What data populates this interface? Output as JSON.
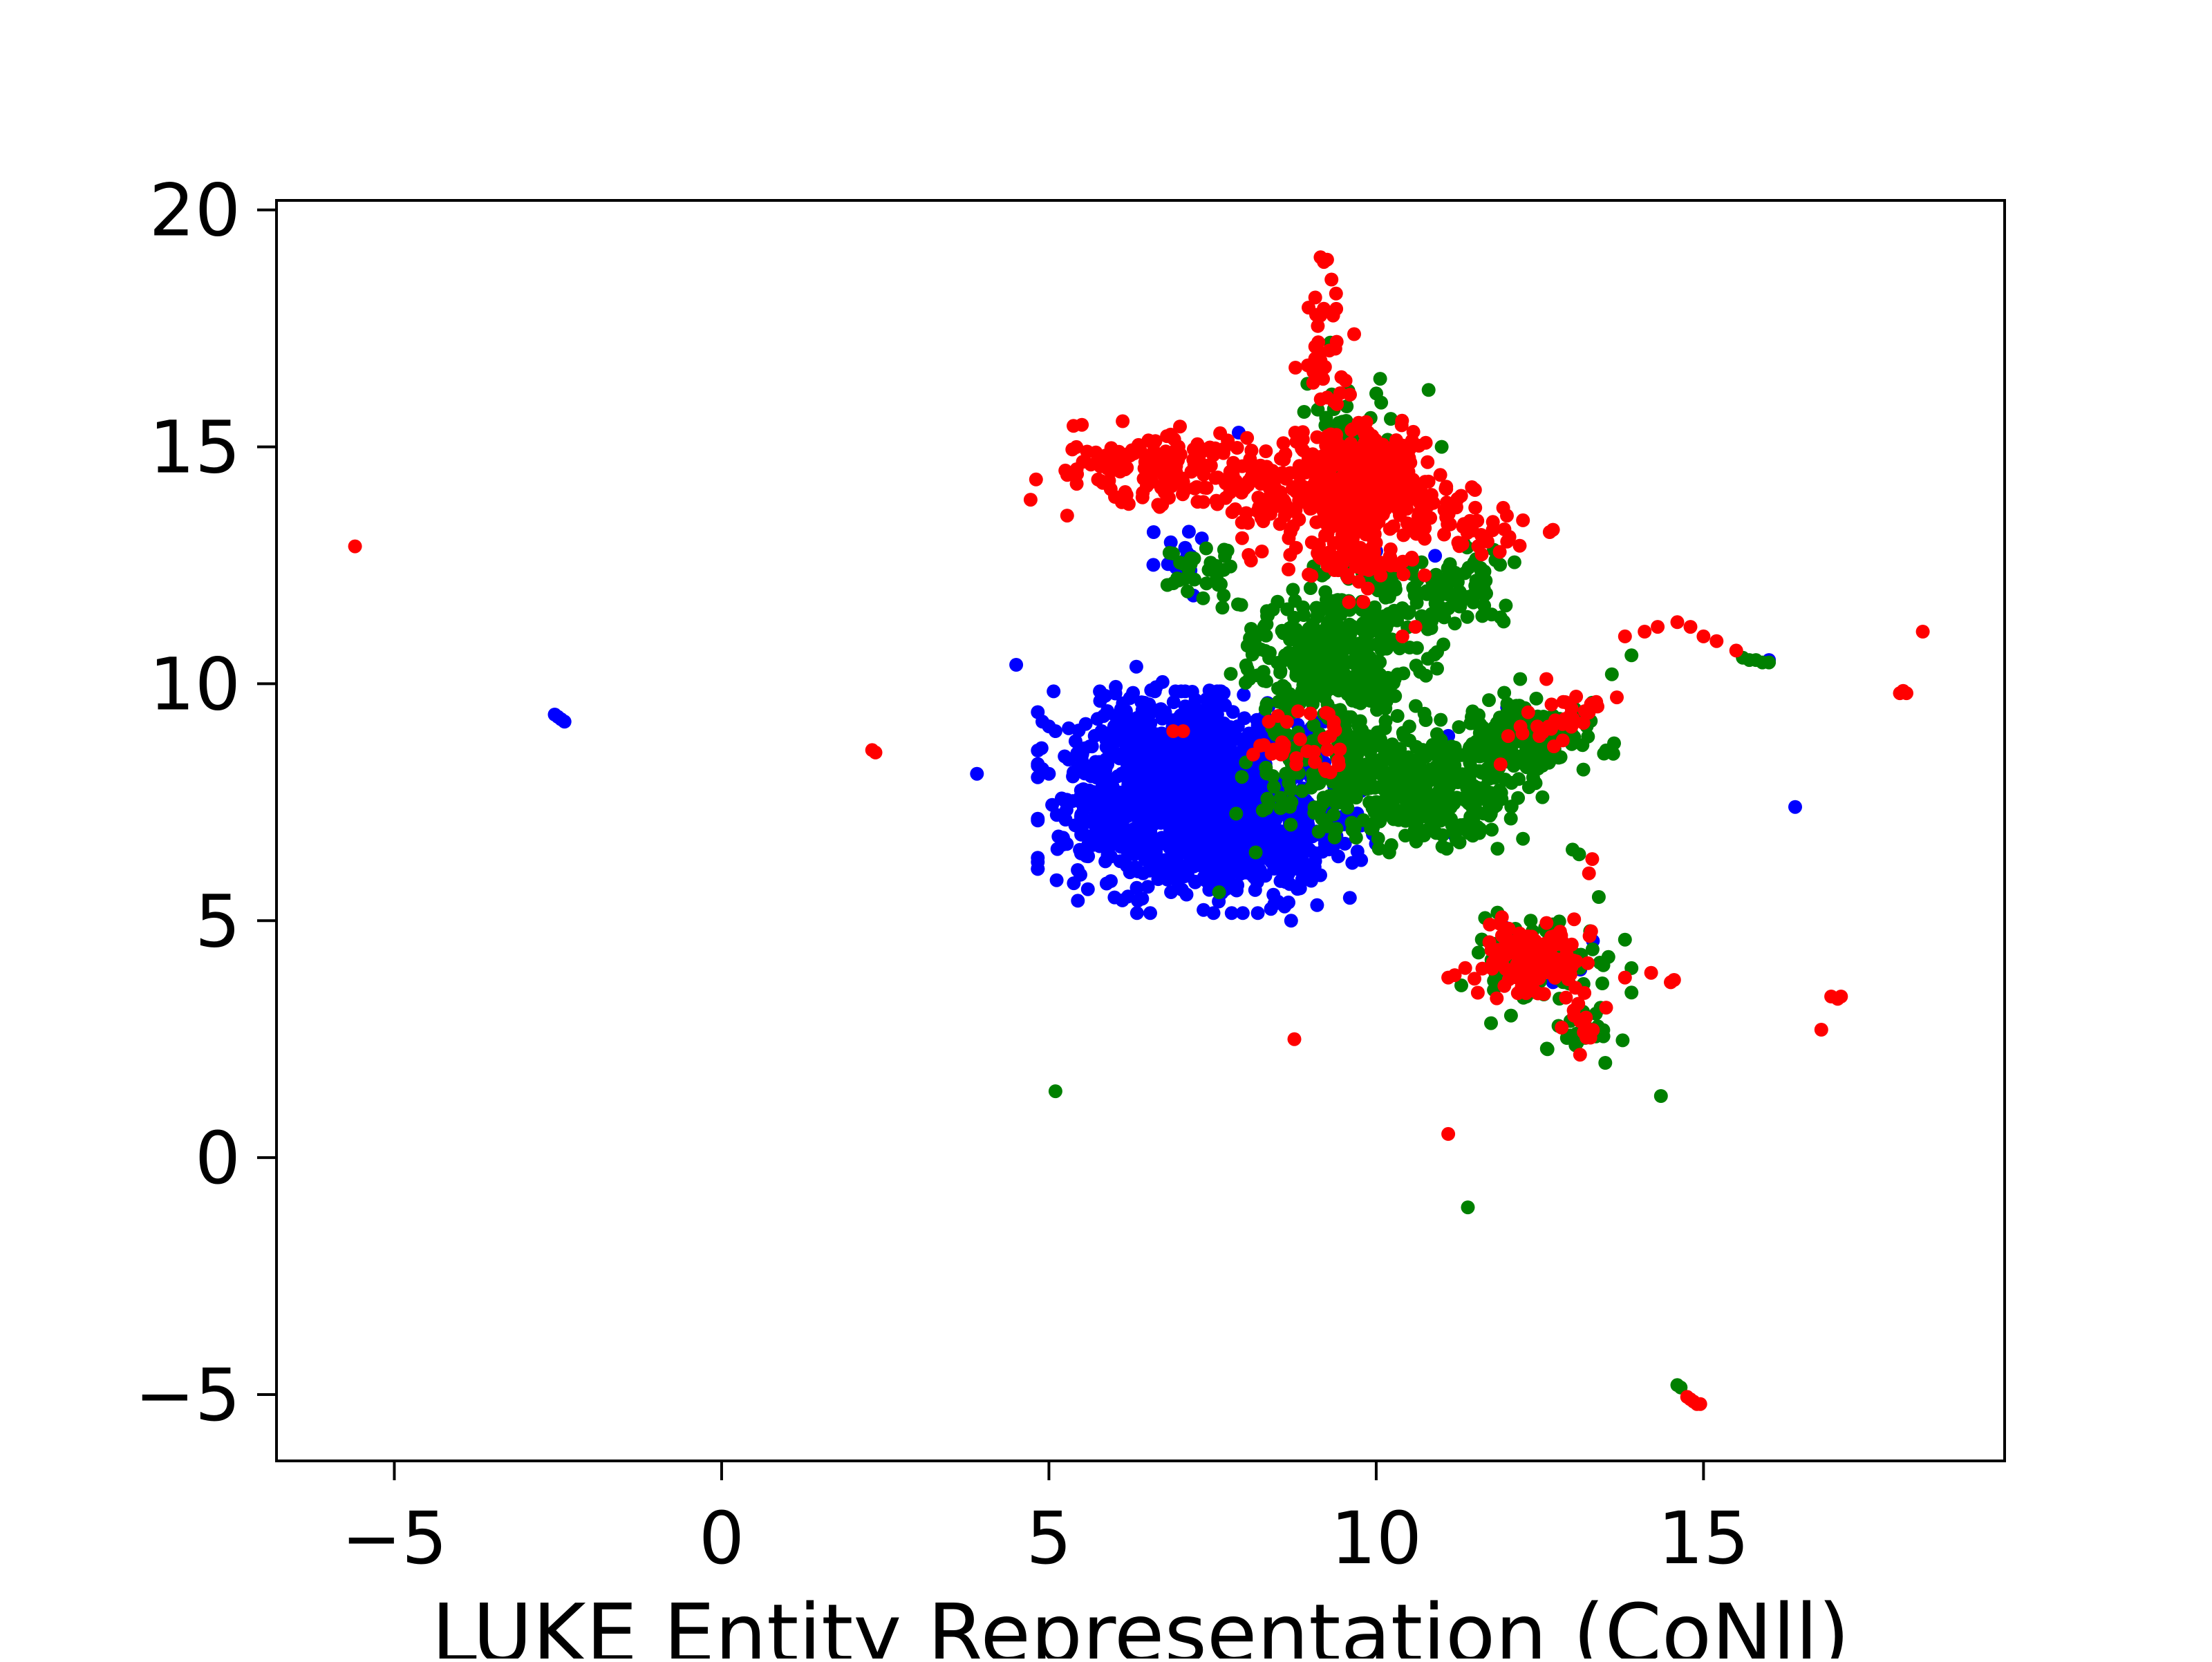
{
  "chart_data": {
    "type": "scatter",
    "title": "",
    "xlabel": "LUKE Entity Representation (CoNll)",
    "ylabel": "",
    "xlim": [
      -6.8,
      19.6
    ],
    "ylim": [
      -6.4,
      20.2
    ],
    "grid": false,
    "legend": "none",
    "x_ticks": [
      {
        "value": -5,
        "label": "−5"
      },
      {
        "value": 0,
        "label": "0"
      },
      {
        "value": 5,
        "label": "5"
      },
      {
        "value": 10,
        "label": "10"
      },
      {
        "value": 15,
        "label": "15"
      }
    ],
    "y_ticks": [
      {
        "value": -5,
        "label": "−5"
      },
      {
        "value": 0,
        "label": "0"
      },
      {
        "value": 5,
        "label": "5"
      },
      {
        "value": 10,
        "label": "10"
      },
      {
        "value": 15,
        "label": "15"
      },
      {
        "value": 20,
        "label": "20"
      }
    ],
    "series": [
      {
        "color": "#0000ff",
        "clusters": [
          {
            "cx": 7.3,
            "cy": 7.5,
            "sx": 0.95,
            "sy": 0.9,
            "n": 1100
          },
          {
            "cx": 6.8,
            "cy": 8.8,
            "sx": 0.6,
            "sy": 0.6,
            "n": 220
          },
          {
            "cx": 8.3,
            "cy": 6.6,
            "sx": 0.5,
            "sy": 0.5,
            "n": 160
          },
          {
            "cx": 5.9,
            "cy": 7.2,
            "sx": 0.3,
            "sy": 0.4,
            "n": 60
          },
          {
            "cx": 7.1,
            "cy": 12.6,
            "sx": 0.25,
            "sy": 0.4,
            "n": 14
          },
          {
            "cx": 12.4,
            "cy": 4.4,
            "sx": 0.35,
            "sy": 0.25,
            "n": 16
          },
          {
            "cx": 9.5,
            "cy": 7.0,
            "sx": 0.3,
            "sy": 0.3,
            "n": 12
          }
        ],
        "points": [
          [
            -2.5,
            9.3
          ],
          [
            -2.45,
            9.25
          ],
          [
            -2.55,
            9.35
          ],
          [
            -2.4,
            9.2
          ],
          [
            3.9,
            8.1
          ],
          [
            4.5,
            10.4
          ],
          [
            4.9,
            9.2
          ],
          [
            5.0,
            9.1
          ],
          [
            5.1,
            9.0
          ],
          [
            4.9,
            8.2
          ],
          [
            5.0,
            8.1
          ],
          [
            5.3,
            8.4
          ],
          [
            5.6,
            6.6
          ],
          [
            5.8,
            6.7
          ],
          [
            5.5,
            8.4
          ],
          [
            5.7,
            8.9
          ],
          [
            8.7,
            5.0
          ],
          [
            8.6,
            5.3
          ],
          [
            8.5,
            5.4
          ],
          [
            16.4,
            7.4
          ],
          [
            16.0,
            10.5
          ],
          [
            10.0,
            12.8
          ],
          [
            10.9,
            12.7
          ],
          [
            11.1,
            8.9
          ],
          [
            11.8,
            8.4
          ],
          [
            12.7,
            3.7
          ],
          [
            7.9,
            15.3
          ],
          [
            6.6,
            13.2
          ],
          [
            11.5,
            14.1
          ],
          [
            12.0,
            9.5
          ],
          [
            11.2,
            6.8
          ],
          [
            9.2,
            9.2
          ]
        ]
      },
      {
        "color": "#008000",
        "clusters": [
          {
            "cx": 9.5,
            "cy": 10.5,
            "sx": 0.55,
            "sy": 0.9,
            "n": 320
          },
          {
            "cx": 10.2,
            "cy": 8.0,
            "sx": 0.9,
            "sy": 0.6,
            "n": 380
          },
          {
            "cx": 12.3,
            "cy": 8.9,
            "sx": 0.55,
            "sy": 0.35,
            "n": 180
          },
          {
            "cx": 8.6,
            "cy": 10.8,
            "sx": 0.4,
            "sy": 0.5,
            "n": 80
          },
          {
            "cx": 10.9,
            "cy": 12.0,
            "sx": 0.6,
            "sy": 0.45,
            "n": 110
          },
          {
            "cx": 9.6,
            "cy": 15.3,
            "sx": 0.35,
            "sy": 0.6,
            "n": 45
          },
          {
            "cx": 12.6,
            "cy": 4.0,
            "sx": 0.5,
            "sy": 0.5,
            "n": 80
          },
          {
            "cx": 13.1,
            "cy": 2.6,
            "sx": 0.3,
            "sy": 0.2,
            "n": 26
          },
          {
            "cx": 7.3,
            "cy": 12.4,
            "sx": 0.3,
            "sy": 0.4,
            "n": 30
          },
          {
            "cx": 11.2,
            "cy": 7.3,
            "sx": 0.45,
            "sy": 0.3,
            "n": 60
          }
        ],
        "points": [
          [
            5.1,
            1.4
          ],
          [
            11.4,
            -1.05
          ],
          [
            14.35,
            1.3
          ],
          [
            14.6,
            -4.8
          ],
          [
            14.65,
            -4.85
          ],
          [
            15.7,
            10.5
          ],
          [
            15.8,
            10.5
          ],
          [
            15.9,
            10.45
          ],
          [
            16.0,
            10.45
          ],
          [
            15.6,
            10.55
          ],
          [
            13.6,
            10.2
          ],
          [
            13.9,
            10.6
          ],
          [
            13.0,
            6.5
          ],
          [
            13.1,
            6.4
          ],
          [
            13.5,
            2.0
          ],
          [
            13.8,
            4.6
          ],
          [
            13.9,
            4.0
          ],
          [
            13.4,
            5.5
          ],
          [
            7.6,
            5.6
          ],
          [
            11.9,
            11.4
          ],
          [
            12.2,
            10.1
          ],
          [
            13.3,
            9.6
          ],
          [
            10.8,
            16.2
          ],
          [
            9.3,
            17.2
          ],
          [
            11.0,
            15.0
          ]
        ]
      },
      {
        "color": "#ff0000",
        "clusters": [
          {
            "cx": 9.9,
            "cy": 14.3,
            "sx": 0.45,
            "sy": 0.55,
            "n": 420
          },
          {
            "cx": 6.8,
            "cy": 14.5,
            "sx": 0.8,
            "sy": 0.4,
            "n": 170
          },
          {
            "cx": 8.7,
            "cy": 13.9,
            "sx": 0.55,
            "sy": 0.5,
            "n": 110
          },
          {
            "cx": 9.7,
            "cy": 12.7,
            "sx": 0.4,
            "sy": 0.4,
            "n": 60
          },
          {
            "cx": 11.2,
            "cy": 13.4,
            "sx": 0.45,
            "sy": 0.35,
            "n": 50
          },
          {
            "cx": 12.4,
            "cy": 4.2,
            "sx": 0.4,
            "sy": 0.35,
            "n": 140
          },
          {
            "cx": 13.2,
            "cy": 2.8,
            "sx": 0.15,
            "sy": 0.25,
            "n": 14
          },
          {
            "cx": 8.9,
            "cy": 8.7,
            "sx": 0.3,
            "sy": 0.35,
            "n": 36
          },
          {
            "cx": 12.9,
            "cy": 9.3,
            "sx": 0.4,
            "sy": 0.3,
            "n": 30
          },
          {
            "cx": 9.2,
            "cy": 17.0,
            "sx": 0.2,
            "sy": 0.6,
            "n": 36
          }
        ],
        "points": [
          [
            -5.6,
            12.9
          ],
          [
            2.3,
            8.6
          ],
          [
            2.35,
            8.55
          ],
          [
            9.15,
            19.0
          ],
          [
            9.2,
            18.9
          ],
          [
            9.25,
            18.95
          ],
          [
            8.75,
            2.5
          ],
          [
            11.1,
            0.5
          ],
          [
            11.1,
            3.8
          ],
          [
            11.2,
            3.85
          ],
          [
            14.5,
            3.7
          ],
          [
            14.55,
            3.75
          ],
          [
            16.8,
            2.7
          ],
          [
            16.95,
            3.4
          ],
          [
            17.05,
            3.35
          ],
          [
            17.1,
            3.4
          ],
          [
            14.75,
            -5.05
          ],
          [
            14.8,
            -5.1
          ],
          [
            14.85,
            -5.15
          ],
          [
            14.9,
            -5.2
          ],
          [
            14.95,
            -5.2
          ],
          [
            18.0,
            9.8
          ],
          [
            18.05,
            9.85
          ],
          [
            18.1,
            9.8
          ],
          [
            18.35,
            11.1
          ],
          [
            14.1,
            11.1
          ],
          [
            14.3,
            11.2
          ],
          [
            14.6,
            11.3
          ],
          [
            14.8,
            11.2
          ],
          [
            15.0,
            11.0
          ],
          [
            15.2,
            10.9
          ],
          [
            15.5,
            10.7
          ],
          [
            13.8,
            11.0
          ],
          [
            12.65,
            13.2
          ],
          [
            12.7,
            13.25
          ],
          [
            12.0,
            13.0
          ],
          [
            11.7,
            13.0
          ],
          [
            10.6,
            11.2
          ],
          [
            10.3,
            12.5
          ],
          [
            6.9,
            9.0
          ],
          [
            7.05,
            9.0
          ],
          [
            10.4,
            11.0
          ],
          [
            13.3,
            6.3
          ],
          [
            13.25,
            6.0
          ],
          [
            13.8,
            3.8
          ],
          [
            14.2,
            3.9
          ],
          [
            9.4,
            15.9
          ],
          [
            9.6,
            16.1
          ],
          [
            11.9,
            8.3
          ],
          [
            12.6,
            10.1
          ]
        ]
      }
    ]
  }
}
